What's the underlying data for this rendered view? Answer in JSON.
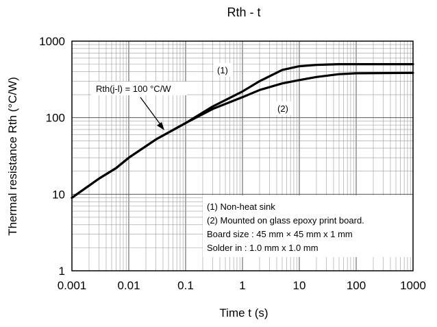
{
  "chart_data": {
    "type": "line",
    "title": "Rth - t",
    "xlabel": "Time  t (s)",
    "ylabel": "Thermal resistance  Rth (°C/W)",
    "x_scale": "log",
    "y_scale": "log",
    "xlim": [
      0.001,
      1000
    ],
    "ylim": [
      1,
      1000
    ],
    "grid": true,
    "x_ticks": [
      "0.001",
      "0.01",
      "0.1",
      "1",
      "10",
      "100",
      "1000"
    ],
    "y_ticks": [
      "1",
      "10",
      "100",
      "1000"
    ],
    "series": [
      {
        "name": "(1)",
        "x": [
          0.001,
          0.003,
          0.006,
          0.01,
          0.03,
          0.1,
          0.3,
          1,
          2,
          5,
          10,
          20,
          50,
          100,
          1000
        ],
        "y": [
          9,
          16,
          22,
          30,
          52,
          85,
          140,
          220,
          300,
          420,
          470,
          490,
          500,
          500,
          500
        ]
      },
      {
        "name": "(2)",
        "x": [
          0.001,
          0.003,
          0.006,
          0.01,
          0.03,
          0.1,
          0.3,
          1,
          2,
          5,
          10,
          20,
          50,
          100,
          1000
        ],
        "y": [
          9,
          16,
          22,
          30,
          52,
          85,
          130,
          185,
          230,
          280,
          310,
          340,
          370,
          380,
          385
        ]
      }
    ],
    "annotations": {
      "rth_label": "Rth(j-l) = 100 °C/W",
      "curve1_label": "(1)",
      "curve2_label": "(2)"
    },
    "notes": [
      "(1) Non-heat sink",
      "(2) Mounted on glass epoxy print board.",
      "Board size : 45 mm × 45 mm x 1 mm",
      "Solder in : 1.0 mm x 1.0 mm"
    ]
  }
}
